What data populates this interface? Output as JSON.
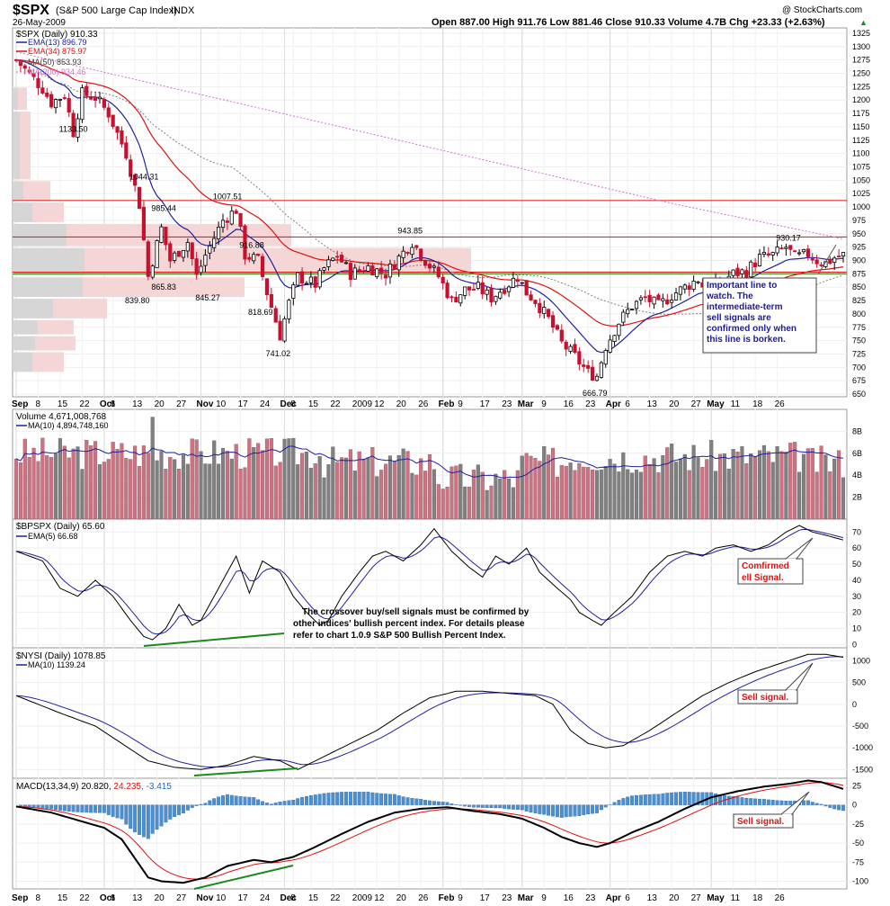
{
  "header": {
    "symbol": "$SPX",
    "name": "(S&P 500 Large Cap Index)",
    "exchange": "INDX",
    "date": "26-May-2009",
    "copyright": "@ StockCharts.com",
    "ohlc": "Open 887.00  High 911.76  Low 881.46  Close 910.33  Volume 4.7B  Chg +23.33 (+2.63%)",
    "ohlc_arrow": "▲"
  },
  "colors": {
    "up": "#000000",
    "down": "#c8102e",
    "ema13": "#2020a0",
    "ema34": "#e01010",
    "ma50": "#808080",
    "ma200": "#d070d0",
    "vol_up": "#808080",
    "vol_down": "#d07080",
    "hist": "#4a90d0",
    "trend": "#1a8a1a",
    "note": "#1a1aa0",
    "signal": "#e01010"
  },
  "chart_data": [
    {
      "type": "candlestick",
      "title": "$SPX (Daily) 910.33",
      "legend": [
        "EMA(13) 896.79",
        "EMA(34) 875.97",
        "MA(50) 853.93",
        "MA(200) 934.46"
      ],
      "y_ticks": [
        1325,
        1300,
        1275,
        1250,
        1225,
        1200,
        1175,
        1150,
        1125,
        1100,
        1075,
        1050,
        1025,
        1000,
        975,
        950,
        925,
        900,
        875,
        850,
        825,
        800,
        775,
        750,
        725,
        700,
        675,
        650
      ],
      "ylim": [
        645,
        1335
      ],
      "x_labels": [
        "Sep",
        "8",
        "15",
        "22",
        "Oct",
        "6",
        "13",
        "20",
        "27",
        "Nov",
        "10",
        "17",
        "24",
        "Dec",
        "8",
        "15",
        "22",
        "2009",
        "12",
        "20",
        "26",
        "Feb",
        "9",
        "17",
        "23",
        "Mar",
        "9",
        "16",
        "23",
        "Apr",
        "6",
        "13",
        "20",
        "27",
        "May",
        "11",
        "18",
        "26"
      ],
      "price_labels": [
        {
          "label": "1133.50",
          "value": 1133.5,
          "i": 13
        },
        {
          "label": "1044.31",
          "value": 1044.31,
          "i": 29
        },
        {
          "label": "985.44",
          "value": 985.44,
          "i": 34
        },
        {
          "label": "1007.51",
          "value": 1007.51,
          "i": 48
        },
        {
          "label": "839.80",
          "value": 839.8,
          "i": 28
        },
        {
          "label": "865.83",
          "value": 865.83,
          "i": 34
        },
        {
          "label": "845.27",
          "value": 845.27,
          "i": 44
        },
        {
          "label": "916.88",
          "value": 916.88,
          "i": 54
        },
        {
          "label": "818.69",
          "value": 818.69,
          "i": 56
        },
        {
          "label": "741.02",
          "value": 741.02,
          "i": 60
        },
        {
          "label": "943.85",
          "value": 943.85,
          "i": 90
        },
        {
          "label": "666.79",
          "value": 666.79,
          "i": 132
        },
        {
          "label": "930.17",
          "value": 930.17,
          "i": 176
        }
      ],
      "horizontal_lines": [
        {
          "value": 1012,
          "color": "#e01010"
        },
        {
          "value": 944,
          "color": "#e01010"
        },
        {
          "value": 878,
          "color": "#e01010"
        },
        {
          "value": 875,
          "color": "#1a8a1a"
        }
      ],
      "anchors": [
        [
          0,
          1275
        ],
        [
          6,
          1222
        ],
        [
          8,
          1195
        ],
        [
          11,
          1210
        ],
        [
          13,
          1140
        ],
        [
          15,
          1212
        ],
        [
          18,
          1205
        ],
        [
          21,
          1175
        ],
        [
          25,
          1100
        ],
        [
          28,
          1005
        ],
        [
          30,
          870
        ],
        [
          33,
          960
        ],
        [
          35,
          900
        ],
        [
          39,
          935
        ],
        [
          41,
          870
        ],
        [
          43,
          910
        ],
        [
          47,
          975
        ],
        [
          50,
          995
        ],
        [
          52,
          910
        ],
        [
          55,
          900
        ],
        [
          57,
          840
        ],
        [
          60,
          760
        ],
        [
          62,
          820
        ],
        [
          64,
          870
        ],
        [
          68,
          855
        ],
        [
          70,
          885
        ],
        [
          73,
          910
        ],
        [
          76,
          875
        ],
        [
          80,
          888
        ],
        [
          84,
          875
        ],
        [
          88,
          915
        ],
        [
          90,
          935
        ],
        [
          93,
          900
        ],
        [
          96,
          870
        ],
        [
          99,
          825
        ],
        [
          102,
          845
        ],
        [
          105,
          848
        ],
        [
          108,
          830
        ],
        [
          111,
          850
        ],
        [
          114,
          870
        ],
        [
          116,
          840
        ],
        [
          118,
          825
        ],
        [
          121,
          790
        ],
        [
          124,
          745
        ],
        [
          127,
          720
        ],
        [
          130,
          690
        ],
        [
          132,
          684
        ],
        [
          134,
          740
        ],
        [
          137,
          785
        ],
        [
          140,
          815
        ],
        [
          143,
          830
        ],
        [
          146,
          815
        ],
        [
          149,
          835
        ],
        [
          152,
          850
        ],
        [
          155,
          865
        ],
        [
          157,
          840
        ],
        [
          160,
          860
        ],
        [
          163,
          875
        ],
        [
          166,
          880
        ],
        [
          169,
          905
        ],
        [
          172,
          910
        ],
        [
          175,
          925
        ],
        [
          177,
          905
        ],
        [
          180,
          912
        ],
        [
          182,
          900
        ],
        [
          184,
          895
        ],
        [
          186,
          905
        ],
        [
          188,
          910
        ]
      ],
      "volume_profile": [
        {
          "low": 1180,
          "high": 1225,
          "up": 6,
          "down": 10
        },
        {
          "low": 1050,
          "high": 1180,
          "up": 8,
          "down": 12
        },
        {
          "low": 1010,
          "high": 1050,
          "up": 12,
          "down": 30
        },
        {
          "low": 970,
          "high": 1010,
          "up": 22,
          "down": 35
        },
        {
          "low": 925,
          "high": 970,
          "up": 60,
          "down": 250
        },
        {
          "low": 870,
          "high": 925,
          "up": 80,
          "down": 430
        },
        {
          "low": 830,
          "high": 870,
          "up": 78,
          "down": 180
        },
        {
          "low": 790,
          "high": 830,
          "up": 45,
          "down": 60
        },
        {
          "low": 760,
          "high": 790,
          "up": 28,
          "down": 40
        },
        {
          "low": 730,
          "high": 760,
          "up": 25,
          "down": 45
        },
        {
          "low": 690,
          "high": 730,
          "up": 22,
          "down": 35
        }
      ]
    },
    {
      "type": "bar",
      "title": "Volume 4,671,008,768",
      "legend": [
        "MA(10) 4,894,748,160"
      ],
      "y_ticks": [
        "8B",
        "6B",
        "4B",
        "2B"
      ],
      "y_tick_values": [
        8,
        6,
        4,
        2
      ],
      "ylim": [
        0,
        10
      ],
      "units": "billions of shares"
    },
    {
      "type": "line",
      "title": "$BPSPX (Daily) 65.60",
      "legend": [
        "EMA(5) 66.68"
      ],
      "y_ticks": [
        70,
        60,
        50,
        40,
        30,
        20,
        10,
        0
      ],
      "ylim": [
        -2,
        78
      ],
      "anchors": [
        [
          0,
          58
        ],
        [
          6,
          52
        ],
        [
          10,
          35
        ],
        [
          14,
          30
        ],
        [
          18,
          40
        ],
        [
          22,
          30
        ],
        [
          26,
          15
        ],
        [
          29,
          5
        ],
        [
          31,
          3
        ],
        [
          34,
          10
        ],
        [
          37,
          25
        ],
        [
          40,
          12
        ],
        [
          42,
          15
        ],
        [
          46,
          35
        ],
        [
          50,
          55
        ],
        [
          53,
          32
        ],
        [
          56,
          52
        ],
        [
          60,
          45
        ],
        [
          63,
          30
        ],
        [
          66,
          20
        ],
        [
          69,
          12
        ],
        [
          71,
          15
        ],
        [
          74,
          30
        ],
        [
          78,
          45
        ],
        [
          81,
          55
        ],
        [
          84,
          58
        ],
        [
          88,
          52
        ],
        [
          92,
          62
        ],
        [
          95,
          72
        ],
        [
          99,
          58
        ],
        [
          103,
          48
        ],
        [
          106,
          42
        ],
        [
          109,
          55
        ],
        [
          112,
          50
        ],
        [
          116,
          60
        ],
        [
          119,
          45
        ],
        [
          123,
          35
        ],
        [
          126,
          28
        ],
        [
          128,
          20
        ],
        [
          131,
          15
        ],
        [
          133,
          12
        ],
        [
          136,
          20
        ],
        [
          140,
          30
        ],
        [
          144,
          45
        ],
        [
          148,
          55
        ],
        [
          152,
          58
        ],
        [
          156,
          55
        ],
        [
          159,
          60
        ],
        [
          163,
          62
        ],
        [
          167,
          58
        ],
        [
          171,
          62
        ],
        [
          175,
          70
        ],
        [
          178,
          74
        ],
        [
          181,
          70
        ],
        [
          184,
          68
        ],
        [
          188,
          65
        ]
      ],
      "note": "The crossover buy/sell signals must be confirmed by other indices' bullish percent index. For details please refer to chart 1.0.9 S&P 500 Bullish Percent Index.",
      "signal": "Comfirmed Sell Signal."
    },
    {
      "type": "line",
      "title": "$NYSI (Daily) 1078.85",
      "legend": [
        "MA(10) 1139.24"
      ],
      "y_ticks": [
        1000,
        500,
        0,
        -500,
        -1000,
        -1500
      ],
      "ylim": [
        -1700,
        1300
      ],
      "anchors": [
        [
          0,
          200
        ],
        [
          10,
          -200
        ],
        [
          18,
          -500
        ],
        [
          24,
          -900
        ],
        [
          30,
          -1300
        ],
        [
          36,
          -1450
        ],
        [
          42,
          -1500
        ],
        [
          48,
          -1400
        ],
        [
          54,
          -1200
        ],
        [
          60,
          -1300
        ],
        [
          64,
          -1500
        ],
        [
          70,
          -1200
        ],
        [
          76,
          -900
        ],
        [
          82,
          -600
        ],
        [
          88,
          -200
        ],
        [
          94,
          150
        ],
        [
          100,
          300
        ],
        [
          106,
          300
        ],
        [
          112,
          250
        ],
        [
          118,
          200
        ],
        [
          122,
          0
        ],
        [
          126,
          -600
        ],
        [
          130,
          -900
        ],
        [
          134,
          -1000
        ],
        [
          138,
          -950
        ],
        [
          144,
          -600
        ],
        [
          150,
          -200
        ],
        [
          156,
          200
        ],
        [
          162,
          500
        ],
        [
          168,
          750
        ],
        [
          174,
          950
        ],
        [
          180,
          1150
        ],
        [
          184,
          1150
        ],
        [
          188,
          1080
        ]
      ],
      "signal": "Sell signal."
    },
    {
      "type": "line",
      "title": "MACD(13,34,9) 20.820, 24.235, -3.415",
      "legend_parts": [
        "MACD(13,34,9) 20.820, ",
        "24.235",
        ", -3.415"
      ],
      "y_ticks": [
        25,
        0,
        -25,
        -50,
        -75,
        -100
      ],
      "ylim": [
        -110,
        35
      ],
      "anchors": [
        [
          0,
          -2
        ],
        [
          8,
          -10
        ],
        [
          14,
          -20
        ],
        [
          20,
          -30
        ],
        [
          24,
          -45
        ],
        [
          27,
          -70
        ],
        [
          30,
          -95
        ],
        [
          33,
          -100
        ],
        [
          38,
          -102
        ],
        [
          43,
          -95
        ],
        [
          48,
          -80
        ],
        [
          54,
          -72
        ],
        [
          58,
          -75
        ],
        [
          63,
          -68
        ],
        [
          68,
          -55
        ],
        [
          74,
          -38
        ],
        [
          80,
          -22
        ],
        [
          86,
          -10
        ],
        [
          92,
          -5
        ],
        [
          98,
          -3
        ],
        [
          104,
          -8
        ],
        [
          110,
          -12
        ],
        [
          115,
          -18
        ],
        [
          120,
          -30
        ],
        [
          124,
          -42
        ],
        [
          128,
          -50
        ],
        [
          132,
          -55
        ],
        [
          135,
          -50
        ],
        [
          140,
          -36
        ],
        [
          146,
          -22
        ],
        [
          152,
          -5
        ],
        [
          158,
          10
        ],
        [
          164,
          18
        ],
        [
          170,
          24
        ],
        [
          176,
          28
        ],
        [
          180,
          32
        ],
        [
          183,
          30
        ],
        [
          188,
          21
        ]
      ],
      "signal": "Sell signal."
    }
  ],
  "notes": {
    "important_line": "Important line to watch. The intermediate-term sell signals are confirmed only when this line is borken."
  }
}
